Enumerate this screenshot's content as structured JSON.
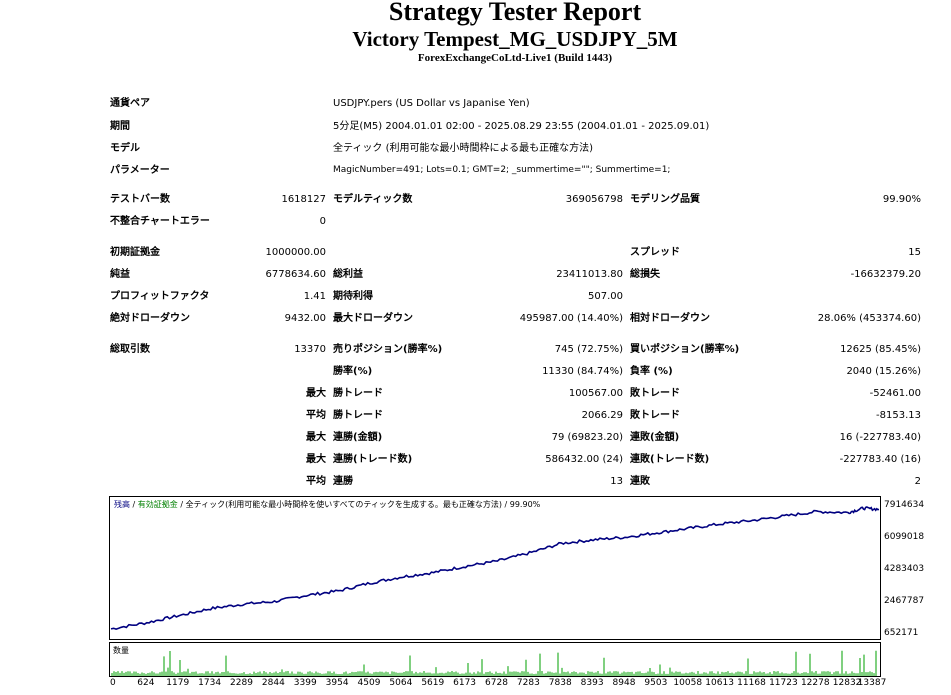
{
  "header": {
    "title": "Strategy Tester Report",
    "subtitle": "Victory Tempest_MG_USDJPY_5M",
    "server": "ForexExchangeCoLtd-Live1 (Build 1443)"
  },
  "info": {
    "symbol_label": "通貨ペア",
    "symbol_value": "USDJPY.pers (US Dollar vs Japanise Yen)",
    "period_label": "期間",
    "period_value": "5分足(M5) 2004.01.01 02:00 - 2025.08.29 23:55 (2004.01.01 - 2025.09.01)",
    "model_label": "モデル",
    "model_value": "全ティック (利用可能な最小時間枠による最も正確な方法)",
    "params_label": "パラメーター",
    "params_value": "MagicNumber=491; Lots=0.1; GMT=2; _summertime=\"\"; Summertime=1;"
  },
  "stats": {
    "bars_label": "テストバー数",
    "bars_value": "1618127",
    "ticks_label": "モデルティック数",
    "ticks_value": "369056798",
    "quality_label": "モデリング品質",
    "quality_value": "99.90%",
    "errors_label": "不整合チャートエラー",
    "errors_value": "0",
    "deposit_label": "初期証拠金",
    "deposit_value": "1000000.00",
    "spread_label": "スプレッド",
    "spread_value": "15",
    "net_label": "純益",
    "net_value": "6778634.60",
    "gross_profit_label": "総利益",
    "gross_profit_value": "23411013.80",
    "gross_loss_label": "総損失",
    "gross_loss_value": "-16632379.20",
    "pf_label": "プロフィットファクタ",
    "pf_value": "1.41",
    "expected_label": "期待利得",
    "expected_value": "507.00",
    "abs_dd_label": "絶対ドローダウン",
    "abs_dd_value": "9432.00",
    "max_dd_label": "最大ドローダウン",
    "max_dd_value": "495987.00 (14.40%)",
    "rel_dd_label": "相対ドローダウン",
    "rel_dd_value": "28.06% (453374.60)",
    "trades_label": "総取引数",
    "trades_value": "13370",
    "short_label": "売りポジション(勝率%)",
    "short_value": "745 (72.75%)",
    "long_label": "買いポジション(勝率%)",
    "long_value": "12625 (85.45%)",
    "win_label": "勝率(%)",
    "win_value": "11330 (84.74%)",
    "loss_label": "負率 (%)",
    "loss_value": "2040 (15.26%)",
    "max_label": "最大",
    "avg_label": "平均",
    "win_trade_label": "勝トレード",
    "loss_trade_label": "敗トレード",
    "largest_win": "100567.00",
    "largest_loss": "-52461.00",
    "avg_win": "2066.29",
    "avg_loss": "-8153.13",
    "cons_win_money_label": "連勝(金額)",
    "cons_loss_money_label": "連敗(金額)",
    "cons_win_money": "79 (69823.20)",
    "cons_loss_money": "16 (-227783.40)",
    "cons_win_count_label": "連勝(トレード数)",
    "cons_loss_count_label": "連敗(トレード数)",
    "cons_win_count": "586432.00 (24)",
    "cons_loss_count": "-227783.40 (16)",
    "win_streak_label": "連勝",
    "loss_streak_label": "連敗",
    "avg_win_streak": "13",
    "avg_loss_streak": "2"
  },
  "chart_data": {
    "type": "line",
    "legend": [
      "残高",
      "有効証拠金",
      "全ティック(利用可能な最小時間枠を使いすべてのティックを生成する。最も正確な方法)",
      "99.90%"
    ],
    "volume_label": "数量",
    "yticks": [
      "7914634",
      "6099018",
      "4283403",
      "2467787",
      "652171"
    ],
    "xticks": [
      "0",
      "624",
      "1179",
      "1734",
      "2289",
      "2844",
      "3399",
      "3954",
      "4509",
      "5064",
      "5619",
      "6173",
      "6728",
      "7283",
      "7838",
      "8393",
      "8948",
      "9503",
      "10058",
      "10613",
      "11168",
      "11723",
      "12278",
      "12832",
      "13387"
    ],
    "ylim": [
      652171,
      7914634
    ],
    "xlim": [
      0,
      13370
    ],
    "x": [
      0,
      624,
      1179,
      1734,
      2289,
      2844,
      3399,
      3954,
      4509,
      5064,
      5619,
      6173,
      6728,
      7283,
      7838,
      8393,
      8948,
      9503,
      10058,
      10613,
      11168,
      11723,
      12278,
      12832,
      13100,
      13370
    ],
    "y": [
      1000000,
      1350000,
      1750000,
      2150000,
      2400000,
      2550000,
      2900000,
      3150000,
      3600000,
      3950000,
      4200000,
      4550000,
      4850000,
      5300000,
      5850000,
      6050000,
      6200000,
      6450000,
      6700000,
      6950000,
      7150000,
      7400000,
      7650000,
      7600000,
      7850000,
      7780000
    ],
    "line_color": "#000080",
    "volume_color": "#00A000"
  }
}
